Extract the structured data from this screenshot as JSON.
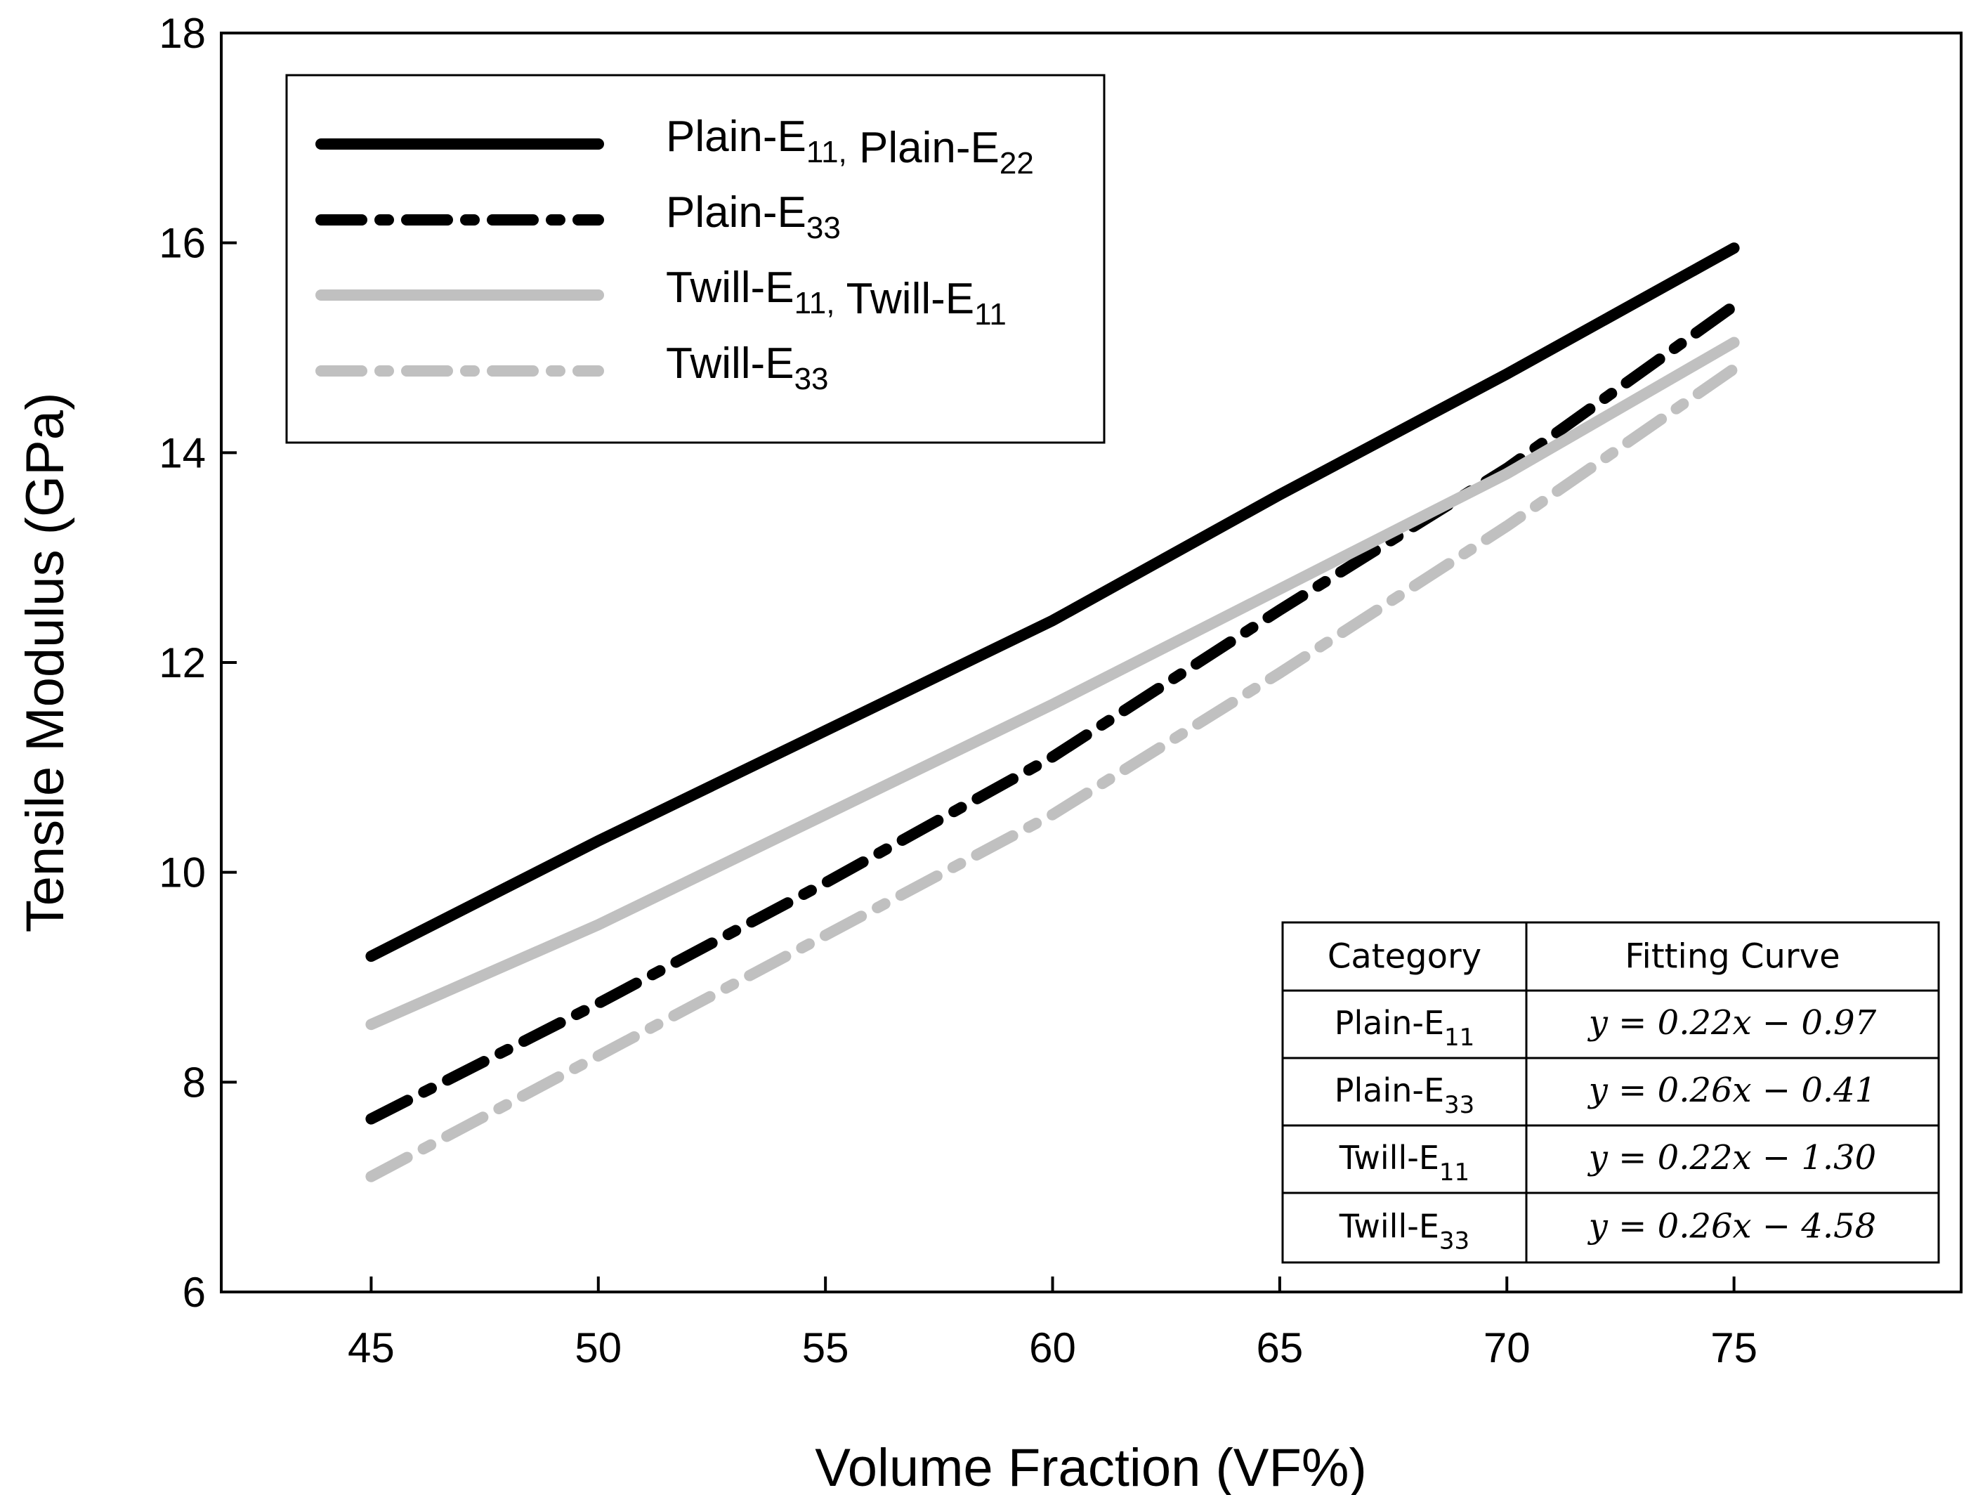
{
  "chart_data": {
    "type": "line",
    "title": "",
    "xlabel": "Volume Fraction (VF%)",
    "ylabel": "Tensile Modulus (GPa)",
    "xlim": [
      41.7,
      80
    ],
    "ylim": [
      6,
      18
    ],
    "xticks": [
      45,
      50,
      55,
      60,
      65,
      70,
      75
    ],
    "yticks": [
      6,
      8,
      10,
      12,
      14,
      16,
      18
    ],
    "grid": false,
    "legend_position": "top-left",
    "series": [
      {
        "legend": [
          {
            "base": "Plain-E",
            "sub": "11,"
          },
          {
            "base": " Plain-E",
            "sub": "22"
          }
        ],
        "color": "#000000",
        "style": "solid",
        "x": [
          45,
          50,
          55,
          60,
          65,
          70,
          75
        ],
        "y": [
          9.2,
          10.3,
          11.35,
          12.4,
          13.6,
          14.75,
          15.95
        ]
      },
      {
        "legend": [
          {
            "base": "Plain-E",
            "sub": "33"
          }
        ],
        "color": "#000000",
        "style": "dashdot",
        "x": [
          45,
          50,
          55,
          60,
          65,
          70,
          75
        ],
        "y": [
          7.65,
          8.75,
          9.9,
          11.1,
          12.5,
          13.85,
          15.4
        ]
      },
      {
        "legend": [
          {
            "base": "Twill-E",
            "sub": "11,"
          },
          {
            "base": " Twill-E",
            "sub": "11"
          }
        ],
        "color": "#c0c0c0",
        "style": "solid",
        "x": [
          45,
          50,
          55,
          60,
          65,
          70,
          75
        ],
        "y": [
          8.55,
          9.5,
          10.55,
          11.6,
          12.7,
          13.8,
          15.05
        ]
      },
      {
        "legend": [
          {
            "base": "Twill-E",
            "sub": "33"
          }
        ],
        "color": "#c0c0c0",
        "style": "dashdot",
        "x": [
          45,
          50,
          55,
          60,
          65,
          70,
          75
        ],
        "y": [
          7.1,
          8.25,
          9.4,
          10.55,
          11.9,
          13.3,
          14.8
        ]
      }
    ],
    "table": {
      "headers": [
        "Category",
        "Fitting Curve"
      ],
      "rows": [
        {
          "base": "Plain-E",
          "sub": "11",
          "equation": "y = 0.22x − 0.97"
        },
        {
          "base": "Plain-E",
          "sub": "33",
          "equation": "y = 0.26x − 0.41"
        },
        {
          "base": "Twill-E",
          "sub": "11",
          "equation": "y = 0.22x − 1.30"
        },
        {
          "base": "Twill-E",
          "sub": "33",
          "equation": "y = 0.26x − 4.58"
        }
      ]
    }
  }
}
